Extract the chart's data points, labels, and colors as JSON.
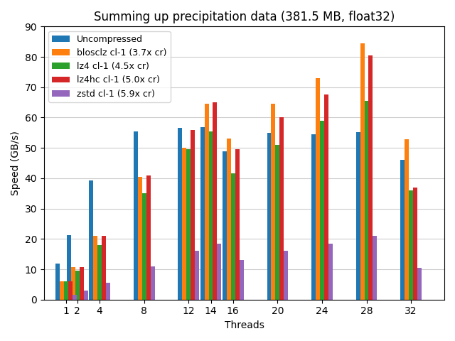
{
  "title": "Summing up precipitation data (381.5 MB, float32)",
  "xlabel": "Threads",
  "ylabel": "Speed (GB/s)",
  "threads": [
    1,
    2,
    4,
    8,
    12,
    14,
    16,
    20,
    24,
    28,
    32
  ],
  "series": [
    {
      "label": "Uncompressed",
      "color": "#1f77b4",
      "values": [
        11.8,
        21.2,
        39.2,
        55.5,
        56.5,
        56.8,
        48.8,
        55.0,
        54.5,
        55.3,
        46.0
      ]
    },
    {
      "label": "blosclz cl-1 (3.7x cr)",
      "color": "#ff7f0e",
      "values": [
        6.0,
        10.8,
        21.0,
        40.5,
        50.0,
        64.5,
        53.0,
        64.5,
        73.0,
        84.5,
        52.8
      ]
    },
    {
      "label": "lz4 cl-1 (4.5x cr)",
      "color": "#2ca02c",
      "values": [
        6.0,
        9.5,
        18.0,
        35.0,
        49.5,
        55.5,
        41.5,
        51.0,
        59.0,
        65.5,
        36.0
      ]
    },
    {
      "label": "lz4hc cl-1 (5.0x cr)",
      "color": "#d62728",
      "values": [
        6.0,
        10.8,
        21.0,
        41.0,
        56.0,
        65.0,
        49.5,
        60.0,
        67.5,
        80.5,
        37.0
      ]
    },
    {
      "label": "zstd cl-1 (5.9x cr)",
      "color": "#9467bd",
      "values": [
        1.5,
        3.0,
        5.5,
        11.0,
        16.0,
        18.5,
        13.0,
        16.0,
        18.5,
        21.0,
        10.5
      ]
    }
  ],
  "ylim": [
    0,
    90
  ],
  "xlim": [
    -1,
    35
  ],
  "bar_width": 0.38,
  "figsize": [
    6.4,
    4.8
  ],
  "dpi": 100
}
